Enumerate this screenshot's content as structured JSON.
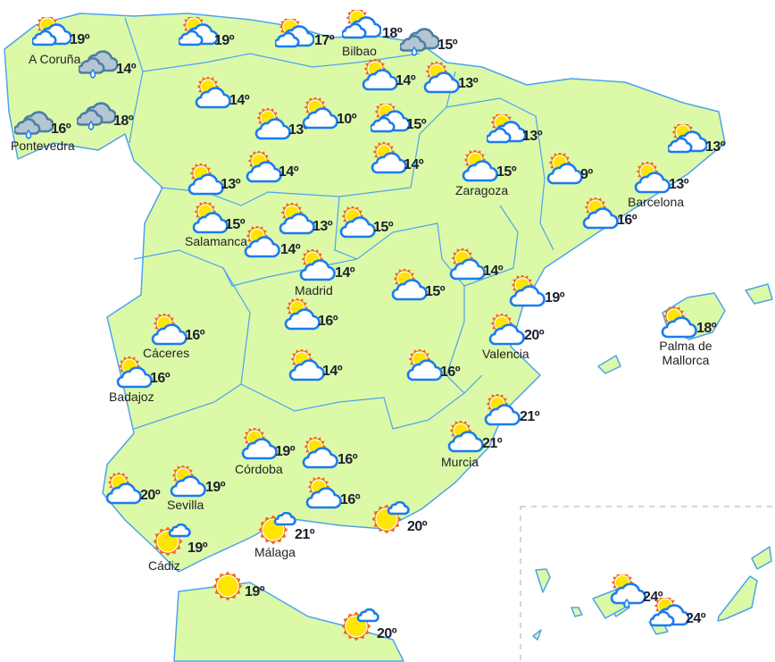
{
  "colors": {
    "land": "#dcf9a8",
    "border": "#4da3f0",
    "cloud_stroke": "#1a7cf0",
    "rain_cloud": "#b3c6d1",
    "rain_stroke": "#4b7ea6",
    "sun": "#ffe600",
    "sun_rays": "#f26a12",
    "text": "#1b1f2c"
  },
  "stations": [
    {
      "temp": "19º",
      "icon": "sun-clouds",
      "city": "A Coruña"
    },
    {
      "temp": "14º",
      "icon": "rain"
    },
    {
      "temp": "16º",
      "icon": "rain",
      "city": "Pontevedra"
    },
    {
      "temp": "18º",
      "icon": "rain"
    },
    {
      "temp": "19º",
      "icon": "sun-clouds"
    },
    {
      "temp": "14º",
      "icon": "sun-cloud"
    },
    {
      "temp": "17º",
      "icon": "sun-clouds"
    },
    {
      "temp": "18º",
      "icon": "sun-clouds",
      "city": "Bilbao"
    },
    {
      "temp": "15º",
      "icon": "rain"
    },
    {
      "temp": "14º",
      "icon": "sun-cloud"
    },
    {
      "temp": "13º",
      "icon": "sun-cloud"
    },
    {
      "temp": "13º",
      "icon": "sun-cloud"
    },
    {
      "temp": "10º",
      "icon": "sun-cloud"
    },
    {
      "temp": "15º",
      "icon": "sun-clouds"
    },
    {
      "temp": "13º",
      "icon": "sun-clouds"
    },
    {
      "temp": "14º",
      "icon": "sun-cloud"
    },
    {
      "temp": "15º",
      "icon": "sun-cloud",
      "city": "Zaragoza"
    },
    {
      "temp": "9º",
      "icon": "sun-cloud"
    },
    {
      "temp": "13º",
      "icon": "sun-clouds"
    },
    {
      "temp": "13º",
      "icon": "sun-cloud",
      "city": "Barcelona"
    },
    {
      "temp": "13º",
      "icon": "sun-cloud"
    },
    {
      "temp": "14º",
      "icon": "sun-cloud"
    },
    {
      "temp": "15º",
      "icon": "sun-cloud",
      "city": "Salamanca"
    },
    {
      "temp": "14º",
      "icon": "sun-cloud"
    },
    {
      "temp": "13º",
      "icon": "sun-cloud"
    },
    {
      "temp": "15º",
      "icon": "sun-cloud"
    },
    {
      "temp": "16º",
      "icon": "sun-cloud"
    },
    {
      "temp": "14º",
      "icon": "sun-cloud"
    },
    {
      "temp": "14º",
      "icon": "sun-cloud",
      "city": "Madrid"
    },
    {
      "temp": "15º",
      "icon": "sun-cloud"
    },
    {
      "temp": "19º",
      "icon": "sun-cloud"
    },
    {
      "temp": "16º",
      "icon": "sun-cloud"
    },
    {
      "temp": "16º",
      "icon": "sun-cloud",
      "city": "Cáceres"
    },
    {
      "temp": "20º",
      "icon": "sun-cloud",
      "city": "Valencia"
    },
    {
      "temp": "18º",
      "icon": "sun-cloud",
      "city": "Palma de Mallorca"
    },
    {
      "temp": "16º",
      "icon": "sun-cloud",
      "city": "Badajoz"
    },
    {
      "temp": "14º",
      "icon": "sun-cloud"
    },
    {
      "temp": "16º",
      "icon": "sun-cloud"
    },
    {
      "temp": "21º",
      "icon": "sun-cloud"
    },
    {
      "temp": "21º",
      "icon": "sun-cloud",
      "city": "Murcia"
    },
    {
      "temp": "19º",
      "icon": "sun-cloud",
      "city": "Córdoba"
    },
    {
      "temp": "16º",
      "icon": "sun-cloud"
    },
    {
      "temp": "19º",
      "icon": "sun-cloud",
      "city": "Sevilla"
    },
    {
      "temp": "20º",
      "icon": "sun-cloud"
    },
    {
      "temp": "16º",
      "icon": "sun-cloud"
    },
    {
      "temp": "19º",
      "icon": "sun-small-cloud",
      "city": "Cádiz"
    },
    {
      "temp": "21º",
      "icon": "sun-small-cloud",
      "city": "Málaga"
    },
    {
      "temp": "20º",
      "icon": "sun-small-cloud"
    },
    {
      "temp": "19º",
      "icon": "sun"
    },
    {
      "temp": "20º",
      "icon": "sun-small-cloud"
    },
    {
      "temp": "24º",
      "icon": "sun-cloud-rain"
    },
    {
      "temp": "24º",
      "icon": "sun-clouds"
    }
  ]
}
